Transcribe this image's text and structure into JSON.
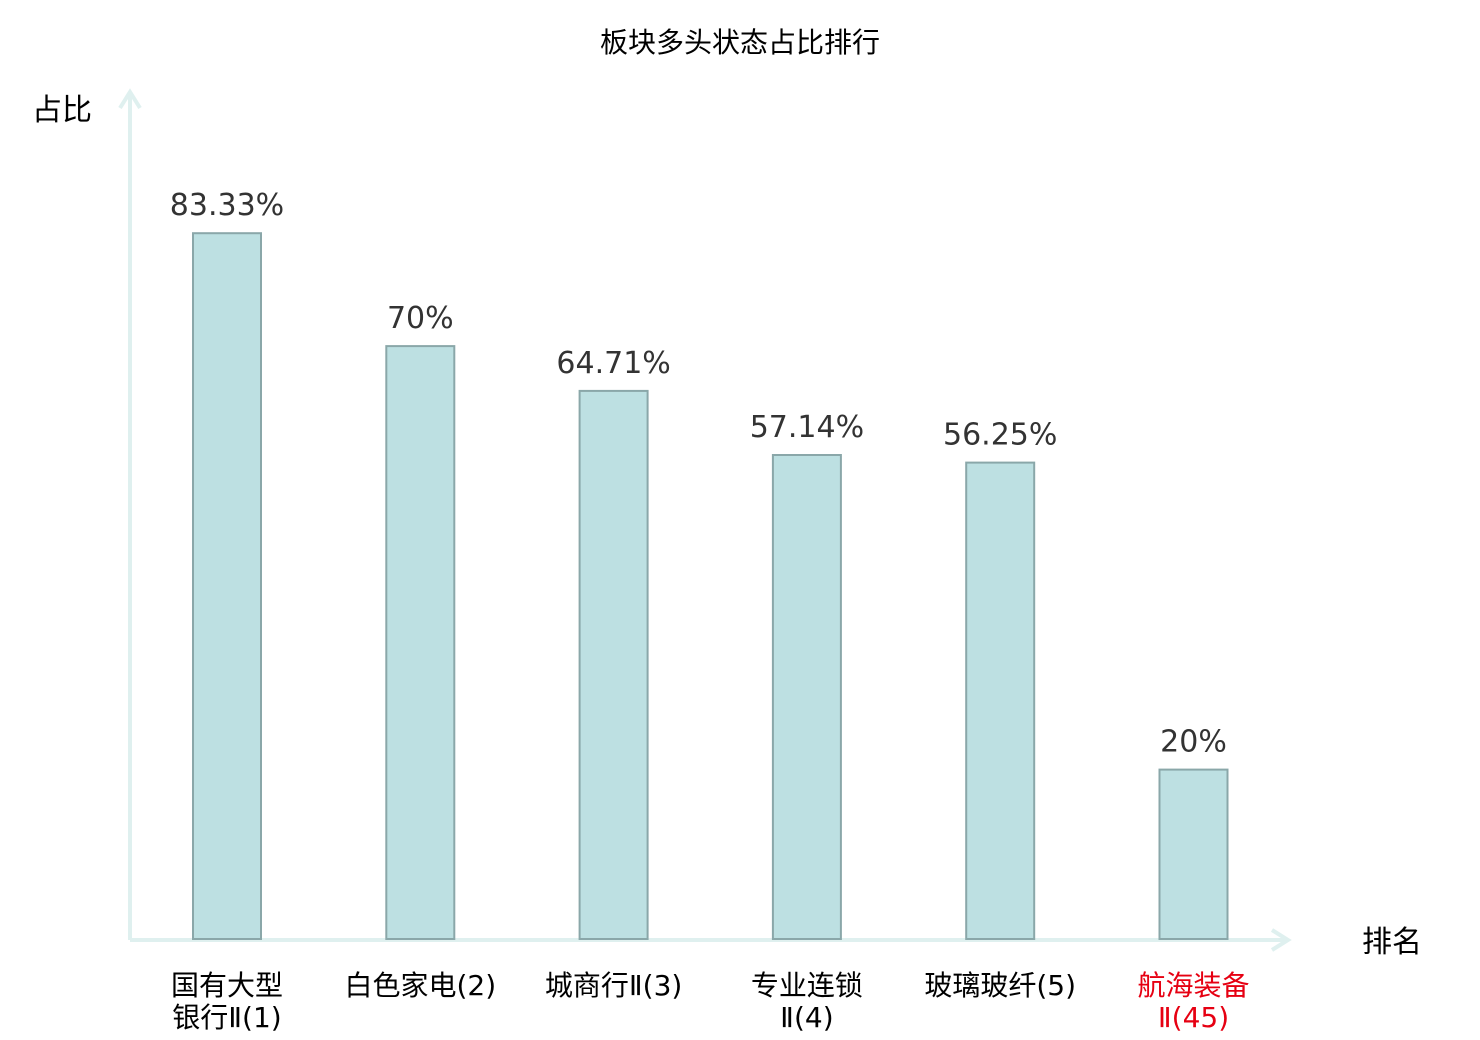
{
  "chart_data": {
    "type": "bar",
    "title": "板块多头状态占比排行",
    "ylabel": "占比",
    "xlabel": "排名",
    "ylim": [
      0,
      100
    ],
    "grid": false,
    "categories": [
      [
        "国有大型",
        "银行Ⅱ(1)"
      ],
      [
        "白色家电(2)"
      ],
      [
        "城商行Ⅱ(3)"
      ],
      [
        "专业连锁",
        "Ⅱ(4)"
      ],
      [
        "玻璃玻纤(5)"
      ],
      [
        "航海装备",
        "Ⅱ(45)"
      ]
    ],
    "values": [
      83.33,
      70,
      64.71,
      57.14,
      56.25,
      20
    ],
    "value_labels": [
      "83.33%",
      "70%",
      "64.71%",
      "57.14%",
      "56.25%",
      "20%"
    ],
    "highlight_index": 5,
    "colors": {
      "bar_fill": "#bde0e2",
      "bar_stroke": "#8aa7a9",
      "axis": "#dff0ef",
      "text": "#333333",
      "highlight_text": "#e60012"
    }
  }
}
